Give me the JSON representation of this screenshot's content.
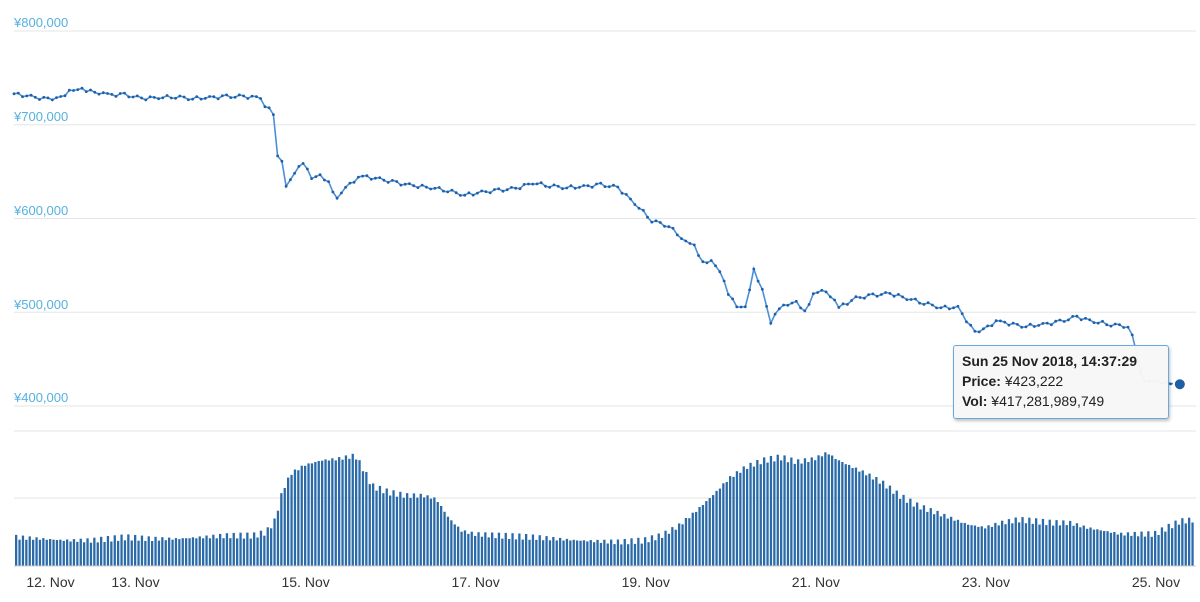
{
  "colors": {
    "price_line": "#4a90d9",
    "price_point": "#1f5fa6",
    "volume_bar": "#2a6aa8",
    "y_tick_text": "#55b1e0",
    "grid": "#e6e6e6",
    "tooltip_border": "#6aa9e0"
  },
  "chart_data": {
    "type": "line",
    "title": "",
    "xlabel": "",
    "ylabel": "",
    "y_ticks": [
      "¥800,000",
      "¥700,000",
      "¥600,000",
      "¥500,000",
      "¥400,000"
    ],
    "y_tick_values": [
      800000,
      700000,
      600000,
      500000,
      400000
    ],
    "ylim": [
      400000,
      800000
    ],
    "x_ticks": [
      "12. Nov",
      "13. Nov",
      "15. Nov",
      "17. Nov",
      "19. Nov",
      "21. Nov",
      "23. Nov",
      "25. Nov"
    ],
    "x_tick_days": [
      12,
      13,
      15,
      17,
      19,
      21,
      23,
      25
    ],
    "xlim_days": [
      11.9,
      25.8
    ],
    "grid": true,
    "series": [
      {
        "kind": "line",
        "x_days": [
          11.9,
          12.1,
          12.3,
          12.45,
          12.6,
          12.75,
          12.9,
          13.0,
          13.2,
          13.4,
          13.6,
          13.8,
          14.0,
          14.2,
          14.4,
          14.6,
          14.8,
          14.85,
          14.9,
          14.95,
          15.0,
          15.05,
          15.1,
          15.2,
          15.3,
          15.4,
          15.5,
          15.6,
          15.7,
          15.8,
          15.9,
          16.0,
          16.2,
          16.4,
          16.6,
          16.8,
          17.0,
          17.2,
          17.4,
          17.6,
          17.8,
          18.0,
          18.2,
          18.4,
          18.6,
          18.8,
          19.0,
          19.2,
          19.4,
          19.6,
          19.8,
          19.9,
          20.0,
          20.1,
          20.2,
          20.3,
          20.4,
          20.5,
          20.6,
          20.7,
          20.8,
          20.9,
          21.0,
          21.1,
          21.2,
          21.3,
          21.4,
          21.5,
          21.6,
          21.8,
          22.0,
          22.2,
          22.4,
          22.6,
          22.8,
          23.0,
          23.2,
          23.35,
          23.5,
          23.6,
          23.8,
          24.0,
          24.2,
          24.4,
          24.6,
          24.8,
          25.0,
          25.05,
          25.1,
          25.15,
          25.2,
          25.3,
          25.4,
          25.5,
          25.61
        ],
        "values": [
          733000,
          730000,
          727000,
          730000,
          738000,
          737000,
          733000,
          732000,
          732000,
          728000,
          729000,
          730000,
          728000,
          729000,
          730000,
          730000,
          729000,
          721000,
          719000,
          710000,
          665000,
          660000,
          635000,
          650000,
          660000,
          642000,
          645000,
          638000,
          622000,
          635000,
          640000,
          645000,
          642000,
          638000,
          635000,
          633000,
          630000,
          625000,
          628000,
          630000,
          632000,
          638000,
          635000,
          633000,
          634000,
          636000,
          633000,
          616000,
          598000,
          592000,
          575000,
          570000,
          553000,
          556000,
          545000,
          520000,
          505000,
          504000,
          545000,
          525000,
          490000,
          505000,
          507000,
          510000,
          500000,
          520000,
          525000,
          518000,
          505000,
          515000,
          518000,
          520000,
          515000,
          510000,
          505000,
          505000,
          478000,
          485000,
          492000,
          488000,
          485000,
          487000,
          490000,
          495000,
          490000,
          487000,
          485000,
          475000,
          455000,
          435000,
          427000,
          428000,
          425000,
          423000,
          423222
        ]
      },
      {
        "kind": "bar",
        "name": "Vol",
        "levels": [
          [
            11.9,
            0.18
          ],
          [
            12.2,
            0.17
          ],
          [
            12.5,
            0.16
          ],
          [
            12.8,
            0.16
          ],
          [
            13.0,
            0.17
          ],
          [
            13.2,
            0.18
          ],
          [
            13.5,
            0.17
          ],
          [
            13.8,
            0.17
          ],
          [
            14.1,
            0.18
          ],
          [
            14.4,
            0.19
          ],
          [
            14.7,
            0.19
          ],
          [
            14.85,
            0.21
          ],
          [
            14.95,
            0.28
          ],
          [
            15.05,
            0.48
          ],
          [
            15.15,
            0.58
          ],
          [
            15.3,
            0.63
          ],
          [
            15.5,
            0.66
          ],
          [
            15.7,
            0.67
          ],
          [
            15.9,
            0.69
          ],
          [
            16.0,
            0.6
          ],
          [
            16.1,
            0.5
          ],
          [
            16.3,
            0.46
          ],
          [
            16.5,
            0.44
          ],
          [
            16.7,
            0.44
          ],
          [
            16.85,
            0.42
          ],
          [
            17.0,
            0.3
          ],
          [
            17.15,
            0.22
          ],
          [
            17.3,
            0.2
          ],
          [
            17.6,
            0.19
          ],
          [
            18.0,
            0.18
          ],
          [
            18.5,
            0.16
          ],
          [
            19.0,
            0.15
          ],
          [
            19.3,
            0.16
          ],
          [
            19.5,
            0.19
          ],
          [
            19.7,
            0.25
          ],
          [
            19.9,
            0.34
          ],
          [
            20.1,
            0.44
          ],
          [
            20.3,
            0.55
          ],
          [
            20.5,
            0.62
          ],
          [
            20.7,
            0.66
          ],
          [
            20.9,
            0.68
          ],
          [
            21.1,
            0.65
          ],
          [
            21.3,
            0.67
          ],
          [
            21.45,
            0.71
          ],
          [
            21.55,
            0.67
          ],
          [
            21.7,
            0.63
          ],
          [
            21.9,
            0.58
          ],
          [
            22.1,
            0.52
          ],
          [
            22.3,
            0.44
          ],
          [
            22.5,
            0.38
          ],
          [
            22.7,
            0.34
          ],
          [
            22.9,
            0.3
          ],
          [
            23.1,
            0.26
          ],
          [
            23.3,
            0.24
          ],
          [
            23.5,
            0.27
          ],
          [
            23.7,
            0.29
          ],
          [
            23.9,
            0.28
          ],
          [
            24.1,
            0.27
          ],
          [
            24.3,
            0.27
          ],
          [
            24.5,
            0.24
          ],
          [
            24.7,
            0.22
          ],
          [
            24.9,
            0.2
          ],
          [
            25.1,
            0.2
          ],
          [
            25.3,
            0.2
          ],
          [
            25.45,
            0.24
          ],
          [
            25.6,
            0.28
          ],
          [
            25.8,
            0.29
          ]
        ]
      }
    ],
    "tooltip": {
      "title": "Sun 25 Nov 2018, 14:37:29",
      "price_label": "Price:",
      "price_value": "¥423,222",
      "vol_label": "Vol:",
      "vol_value": "¥417,281,989,749"
    }
  }
}
